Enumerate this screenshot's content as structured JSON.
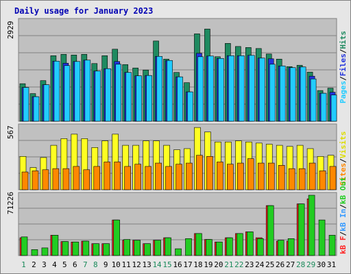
{
  "chart_data": [
    {
      "type": "bar",
      "title": "Daily usage for January 2023",
      "panel": "Hits / Files / Pages",
      "categories": [
        "1",
        "2",
        "3",
        "4",
        "5",
        "6",
        "7",
        "8",
        "9",
        "10",
        "11",
        "12",
        "13",
        "14",
        "15",
        "16",
        "17",
        "18",
        "19",
        "20",
        "21",
        "22",
        "23",
        "24",
        "25",
        "26",
        "27",
        "28",
        "29",
        "30",
        "31"
      ],
      "weekend_days": [
        "1",
        "7",
        "8",
        "14",
        "15",
        "21",
        "22",
        "28",
        "29"
      ],
      "ymax_label": "2929",
      "ylim": [
        0,
        2929
      ],
      "legend": [
        "Pages",
        "Files",
        "Hits"
      ],
      "series": [
        {
          "name": "Hits",
          "values": [
            1100,
            810,
            1190,
            1920,
            1960,
            1940,
            1960,
            1690,
            1920,
            2110,
            1660,
            1560,
            1500,
            2350,
            1820,
            1430,
            1130,
            2560,
            2700,
            1890,
            2280,
            2190,
            2160,
            2130,
            1970,
            1820,
            1600,
            1640,
            1440,
            900,
            970
          ]
        },
        {
          "name": "Files",
          "values": [
            990,
            720,
            1070,
            1760,
            1700,
            1750,
            1790,
            1470,
            1540,
            1750,
            1430,
            1330,
            1340,
            1900,
            1780,
            1300,
            860,
            1990,
            1910,
            1840,
            1920,
            1920,
            1930,
            1850,
            1830,
            1620,
            1570,
            1590,
            1320,
            820,
            850
          ]
        },
        {
          "name": "Pages",
          "values": [
            990,
            720,
            1070,
            1760,
            1630,
            1750,
            1790,
            1470,
            1540,
            1670,
            1430,
            1330,
            1340,
            1900,
            1780,
            1300,
            860,
            1890,
            1910,
            1840,
            1920,
            1920,
            1930,
            1850,
            1670,
            1620,
            1570,
            1590,
            1240,
            820,
            770
          ]
        }
      ],
      "colors": {
        "Hits": "#1f8a60",
        "Files": "#2233dd",
        "Pages": "#22ccff"
      }
    },
    {
      "type": "bar",
      "panel": "Visits / Sites",
      "ymax_label": "567",
      "ylim": [
        0,
        567
      ],
      "legend": [
        "Sites",
        "Visits"
      ],
      "series": [
        {
          "name": "Visits",
          "values": [
            300,
            200,
            290,
            400,
            460,
            500,
            460,
            380,
            440,
            500,
            400,
            400,
            440,
            440,
            400,
            360,
            370,
            560,
            520,
            430,
            430,
            440,
            430,
            420,
            410,
            400,
            390,
            400,
            370,
            300,
            310
          ]
        },
        {
          "name": "Sites",
          "values": [
            160,
            170,
            180,
            190,
            190,
            210,
            180,
            210,
            250,
            250,
            210,
            230,
            210,
            240,
            210,
            230,
            240,
            310,
            300,
            250,
            230,
            240,
            280,
            240,
            240,
            220,
            190,
            190,
            240,
            170,
            210
          ]
        }
      ],
      "colors": {
        "Sites": "#ff8800",
        "Visits": "#ffff22"
      }
    },
    {
      "type": "bar",
      "panel": "kB F / kB In / kB Out",
      "ymax_label": "71226",
      "ylim": [
        0,
        71226
      ],
      "legend": [
        "kB F",
        "kB In",
        "kB Out"
      ],
      "series": [
        {
          "name": "kB F",
          "values": [
            21000,
            0,
            0,
            24000,
            16500,
            16000,
            17000,
            14000,
            14000,
            42000,
            18000,
            18000,
            14000,
            18000,
            21000,
            0,
            0,
            26000,
            19000,
            16000,
            21000,
            26000,
            28000,
            21000,
            59000,
            17000,
            17000,
            61000,
            67000,
            0,
            0
          ]
        },
        {
          "name": "kB Out",
          "values": [
            22000,
            7000,
            9000,
            24000,
            16500,
            16000,
            17000,
            14000,
            14000,
            42000,
            19000,
            18000,
            14000,
            18000,
            21000,
            8000,
            20000,
            26000,
            19000,
            16000,
            21000,
            26000,
            28000,
            20000,
            59000,
            18000,
            20000,
            61000,
            71226,
            42000,
            24000
          ]
        }
      ],
      "colors": {
        "kB F": "#ff2222",
        "kB In": "#3399ff",
        "kB Out": "#22cc22"
      }
    }
  ]
}
